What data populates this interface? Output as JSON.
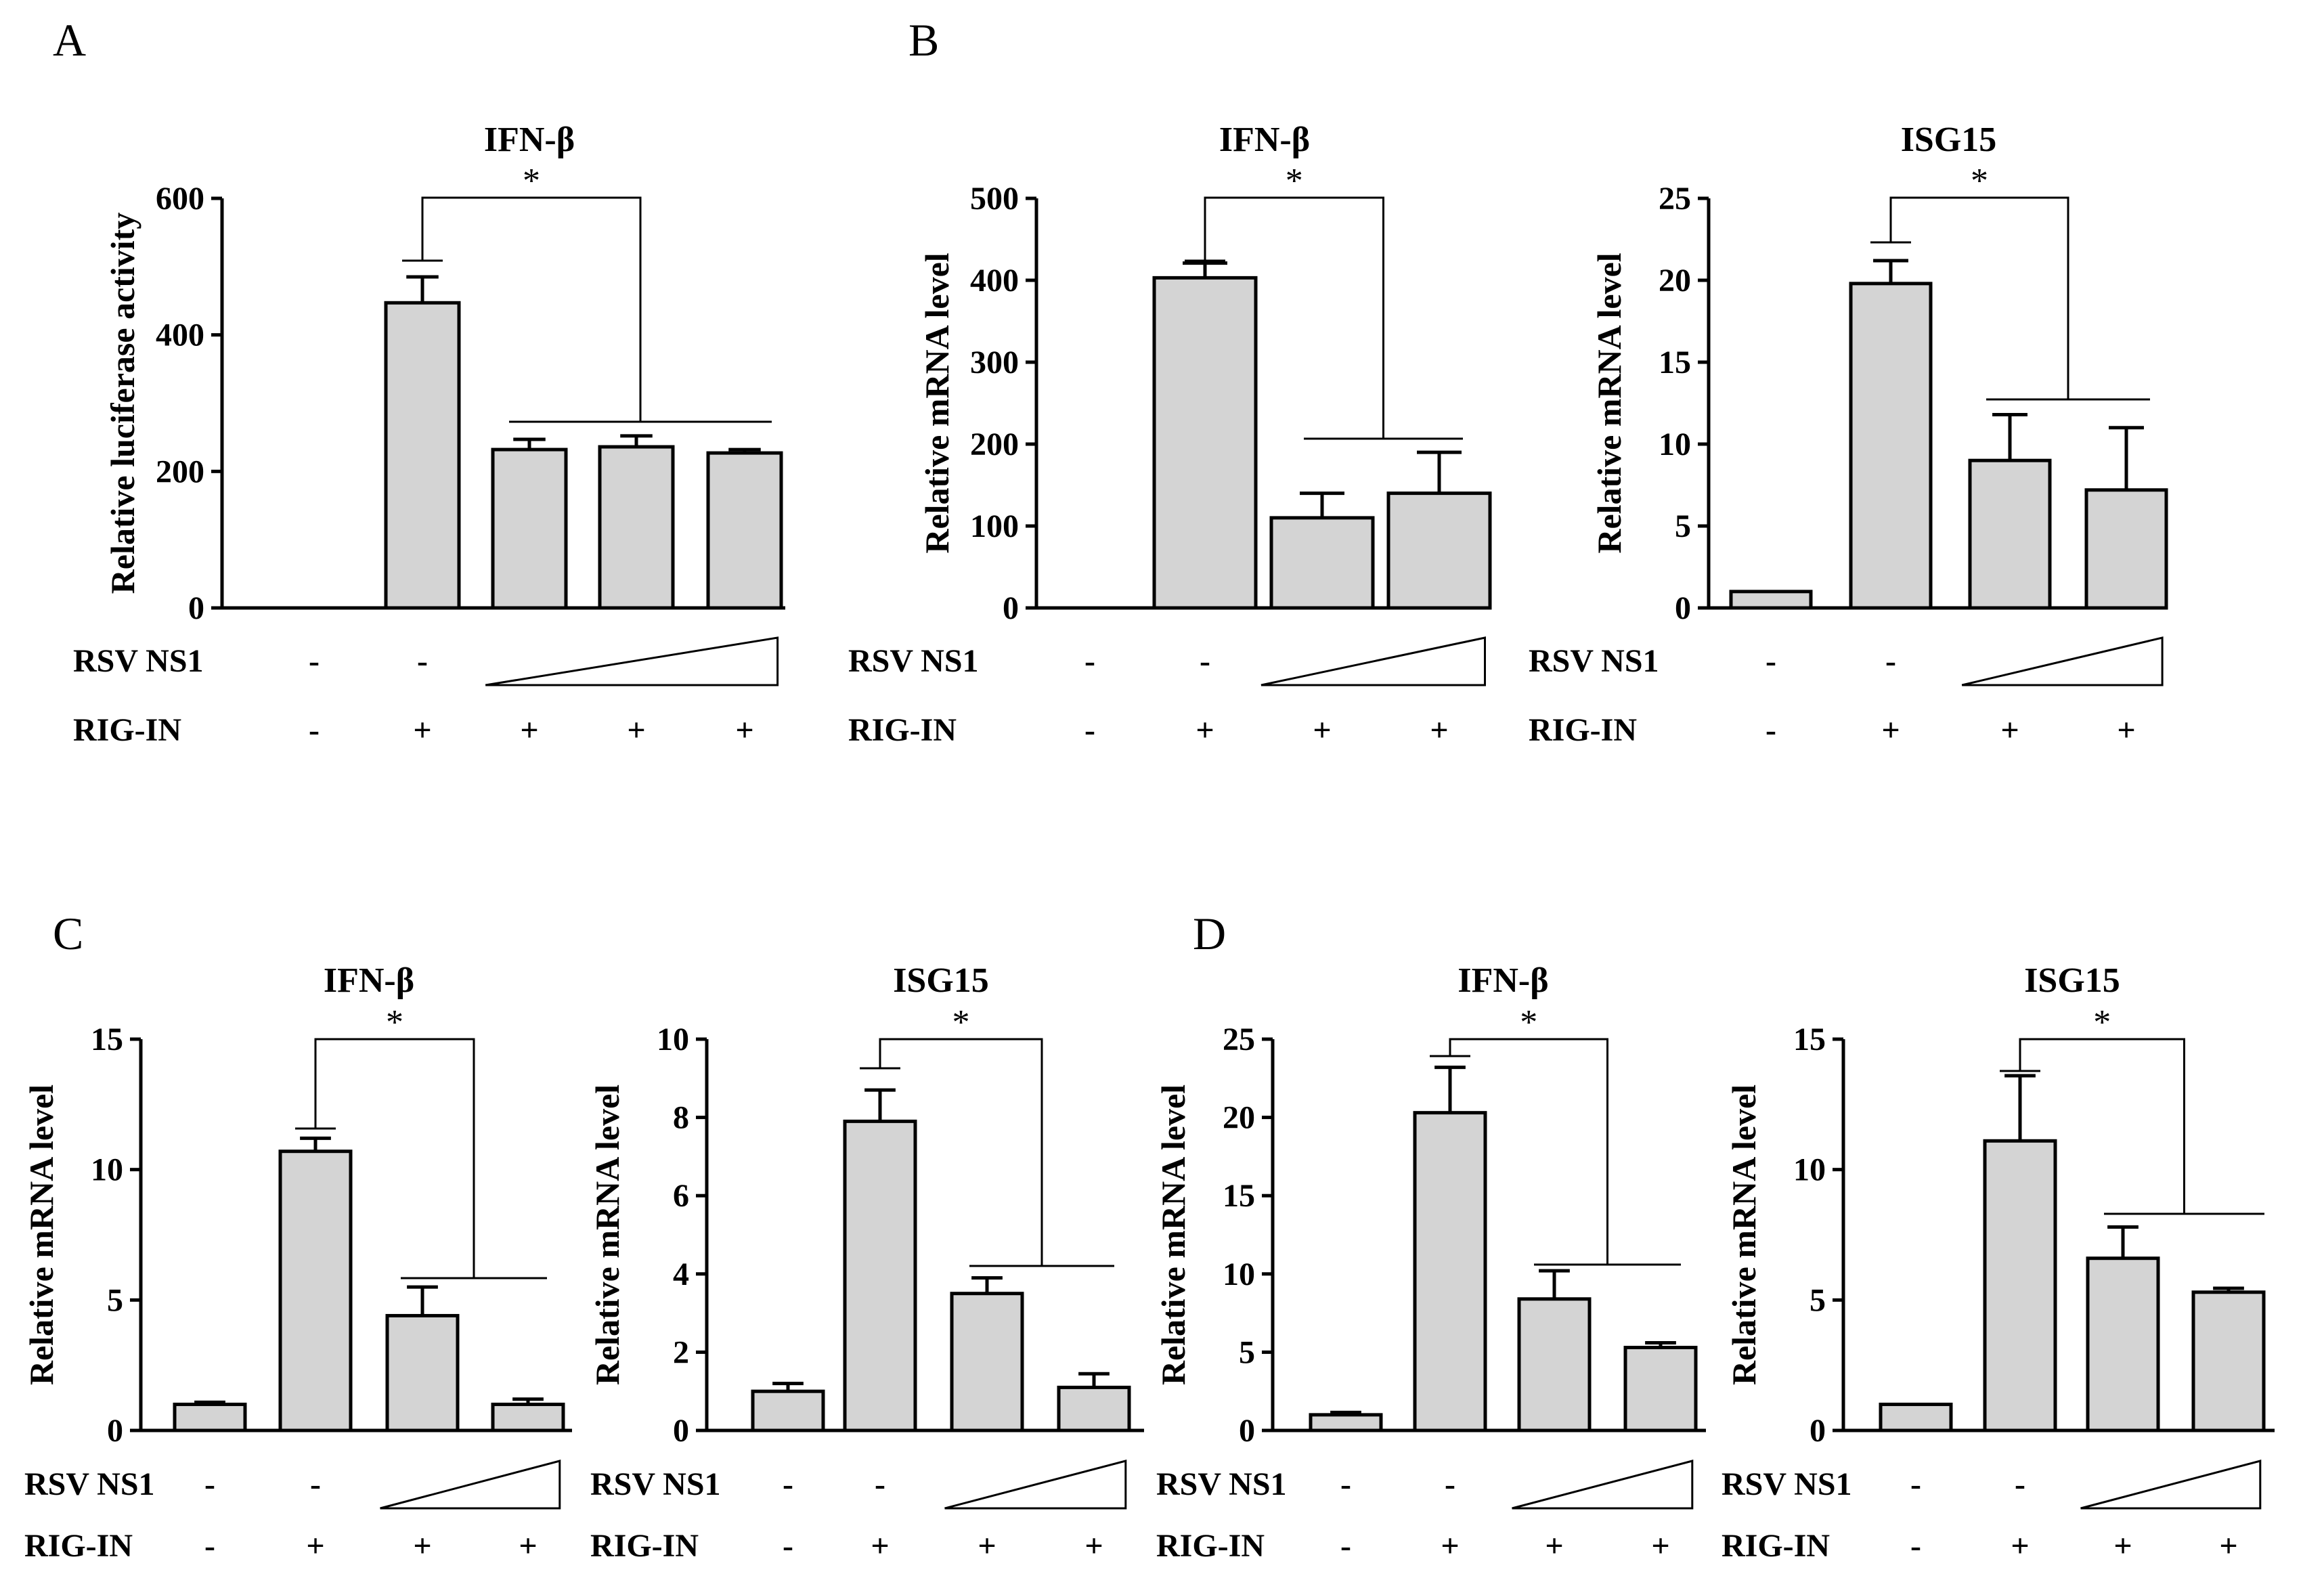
{
  "panel_letters": [
    "A",
    "B",
    "C",
    "D"
  ],
  "chart_data": [
    {
      "type": "bar",
      "panel": "A",
      "title": "IFN-β",
      "ylabel": "Relative  luciferase activity",
      "ylim": [
        0,
        600
      ],
      "yticks": [
        0,
        200,
        400,
        600
      ],
      "values": [
        0,
        447,
        232,
        236,
        227
      ],
      "errors": [
        0,
        38,
        15,
        16,
        5
      ],
      "significance": {
        "label": "*",
        "from": 1,
        "to": [
          2,
          4
        ]
      },
      "conditions": [
        {
          "name": "RSV NS1",
          "signs": [
            "-",
            "-"
          ],
          "gradient_from": 2,
          "gradient_to": 4
        },
        {
          "name": "RIG-IN",
          "signs": [
            "-",
            "+",
            "+",
            "+",
            "+"
          ]
        }
      ]
    },
    {
      "type": "bar",
      "panel": "B",
      "title": "IFN-β",
      "ylabel": "Relative  mRNA level",
      "ylim": [
        0,
        500
      ],
      "yticks": [
        0,
        100,
        200,
        300,
        400,
        500
      ],
      "values": [
        0,
        403,
        110,
        140
      ],
      "errors": [
        0,
        18,
        30,
        50
      ],
      "significance": {
        "label": "*",
        "from": 1,
        "to": [
          2,
          3
        ]
      },
      "conditions": [
        {
          "name": "RSV NS1",
          "signs": [
            "-",
            "-"
          ],
          "gradient_from": 2,
          "gradient_to": 3
        },
        {
          "name": "RIG-IN",
          "signs": [
            "-",
            "+",
            "+",
            "+"
          ]
        }
      ]
    },
    {
      "type": "bar",
      "panel": "B",
      "title": "ISG15",
      "ylabel": "Relative  mRNA level",
      "ylim": [
        0,
        25
      ],
      "yticks": [
        0,
        5,
        10,
        15,
        20,
        25
      ],
      "values": [
        1,
        19.8,
        9,
        7.2
      ],
      "errors": [
        0,
        1.4,
        2.8,
        3.8
      ],
      "significance": {
        "label": "*",
        "from": 1,
        "to": [
          2,
          3
        ]
      },
      "conditions": [
        {
          "name": "RSV NS1",
          "signs": [
            "-",
            "-"
          ],
          "gradient_from": 2,
          "gradient_to": 3
        },
        {
          "name": "RIG-IN",
          "signs": [
            "-",
            "+",
            "+",
            "+"
          ]
        }
      ]
    },
    {
      "type": "bar",
      "panel": "C",
      "title": "IFN-β",
      "ylabel": "Relative  mRNA level",
      "ylim": [
        0,
        15
      ],
      "yticks": [
        0,
        5,
        10,
        15
      ],
      "values": [
        1,
        10.7,
        4.4,
        1
      ],
      "errors": [
        0.08,
        0.5,
        1.1,
        0.2
      ],
      "significance": {
        "label": "*",
        "from": 1,
        "to": [
          2,
          3
        ]
      },
      "conditions": [
        {
          "name": "RSV NS1",
          "signs": [
            "-",
            "-"
          ],
          "gradient_from": 2,
          "gradient_to": 3
        },
        {
          "name": "RIG-IN",
          "signs": [
            "-",
            "+",
            "+",
            "+"
          ]
        }
      ]
    },
    {
      "type": "bar",
      "panel": "C",
      "title": "ISG15",
      "ylabel": "Relative  mRNA level",
      "ylim": [
        0,
        10
      ],
      "yticks": [
        0,
        2,
        4,
        6,
        8,
        10
      ],
      "values": [
        1,
        7.9,
        3.5,
        1.1
      ],
      "errors": [
        0.2,
        0.8,
        0.4,
        0.35
      ],
      "significance": {
        "label": "*",
        "from": 1,
        "to": [
          2,
          3
        ]
      },
      "conditions": [
        {
          "name": "RSV NS1",
          "signs": [
            "-",
            "-"
          ],
          "gradient_from": 2,
          "gradient_to": 3
        },
        {
          "name": "RIG-IN",
          "signs": [
            "-",
            "+",
            "+",
            "+"
          ]
        }
      ]
    },
    {
      "type": "bar",
      "panel": "D",
      "title": "IFN-β",
      "ylabel": "Relative  mRNA level",
      "ylim": [
        0,
        25
      ],
      "yticks": [
        0,
        5,
        10,
        15,
        20,
        25
      ],
      "values": [
        1,
        20.3,
        8.4,
        5.3
      ],
      "errors": [
        0.15,
        2.9,
        1.8,
        0.3
      ],
      "significance": {
        "label": "*",
        "from": 1,
        "to": [
          2,
          3
        ]
      },
      "conditions": [
        {
          "name": "RSV NS1",
          "signs": [
            "-",
            "-"
          ],
          "gradient_from": 2,
          "gradient_to": 3
        },
        {
          "name": "RIG-IN",
          "signs": [
            "-",
            "+",
            "+",
            "+"
          ]
        }
      ]
    },
    {
      "type": "bar",
      "panel": "D",
      "title": "ISG15",
      "ylabel": "Relative  mRNA level",
      "ylim": [
        0,
        15
      ],
      "yticks": [
        0,
        5,
        10,
        15
      ],
      "values": [
        1,
        11.1,
        6.6,
        5.3
      ],
      "errors": [
        0,
        2.5,
        1.2,
        0.15
      ],
      "significance": {
        "label": "*",
        "from": 1,
        "to": [
          2,
          3
        ]
      },
      "conditions": [
        {
          "name": "RSV NS1",
          "signs": [
            "-",
            "-"
          ],
          "gradient_from": 2,
          "gradient_to": 3
        },
        {
          "name": "RIG-IN",
          "signs": [
            "-",
            "+",
            "+",
            "+"
          ]
        }
      ]
    }
  ]
}
